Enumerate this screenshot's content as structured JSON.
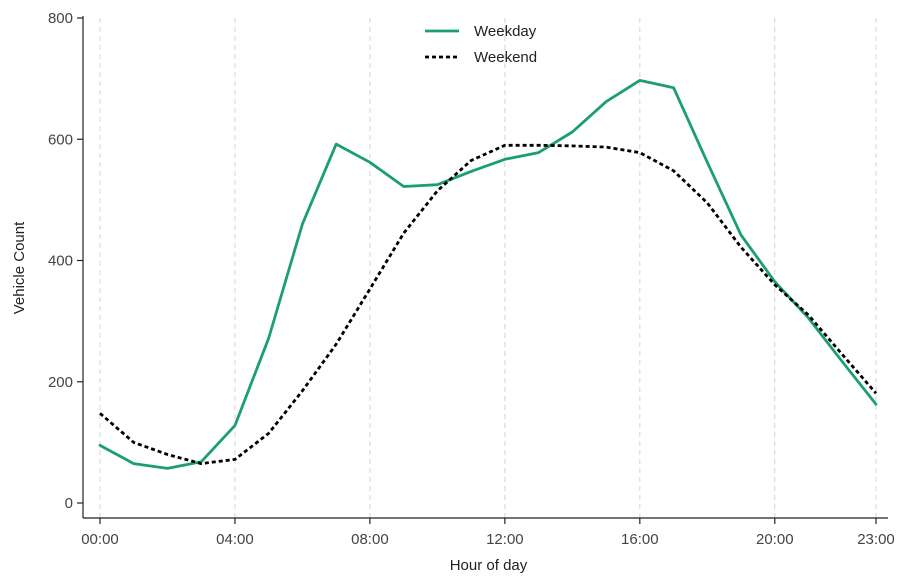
{
  "chart_data": {
    "type": "line",
    "xlabel": "Hour of day",
    "ylabel": "Vehicle Count",
    "x": [
      0,
      1,
      2,
      3,
      4,
      5,
      6,
      7,
      8,
      9,
      10,
      11,
      12,
      13,
      14,
      15,
      16,
      17,
      18,
      19,
      20,
      21,
      22,
      23
    ],
    "xlim": [
      0,
      23
    ],
    "ylim": [
      0,
      800
    ],
    "x_ticks": [
      {
        "value": 0,
        "label": "00:00"
      },
      {
        "value": 4,
        "label": "04:00"
      },
      {
        "value": 8,
        "label": "08:00"
      },
      {
        "value": 12,
        "label": "12:00"
      },
      {
        "value": 16,
        "label": "16:00"
      },
      {
        "value": 20,
        "label": "20:00"
      },
      {
        "value": 23,
        "label": "23:00"
      }
    ],
    "y_ticks": [
      {
        "value": 0,
        "label": "0"
      },
      {
        "value": 200,
        "label": "200"
      },
      {
        "value": 400,
        "label": "400"
      },
      {
        "value": 600,
        "label": "600"
      },
      {
        "value": 800,
        "label": "800"
      }
    ],
    "grid": "vertical dashed at x ticks",
    "legend_position": "top-center",
    "series": [
      {
        "name": "Weekday",
        "color": "#1b9e77",
        "style": "solid",
        "values": [
          95,
          65,
          57,
          68,
          128,
          272,
          460,
          592,
          562,
          522,
          525,
          547,
          567,
          578,
          612,
          662,
          697,
          685,
          562,
          442,
          365,
          305,
          233,
          163
        ]
      },
      {
        "name": "Weekend",
        "color": "#000000",
        "style": "dotted",
        "values": [
          148,
          100,
          80,
          65,
          72,
          115,
          185,
          262,
          353,
          445,
          515,
          565,
          590,
          590,
          589,
          587,
          578,
          548,
          495,
          422,
          360,
          310,
          245,
          181
        ]
      }
    ]
  }
}
